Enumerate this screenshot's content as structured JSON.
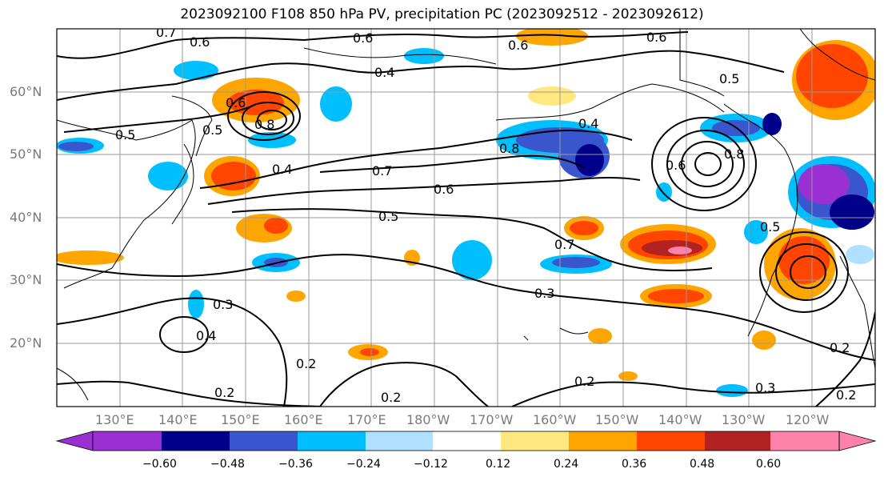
{
  "title": "2023092100 F108 850 hPa PV, precipitation PC (2023092512 - 2023092612)",
  "lat_labels": [
    "60°N",
    "50°N",
    "40°N",
    "30°N",
    "20°N"
  ],
  "lon_labels": [
    "130°E",
    "140°E",
    "150°E",
    "160°E",
    "170°E",
    "180°W",
    "170°W",
    "160°W",
    "150°W",
    "140°W",
    "130°W",
    "120°W"
  ],
  "colorbar": {
    "ticks": [
      "−0.60",
      "−0.48",
      "−0.36",
      "−0.24",
      "−0.12",
      "0.12",
      "0.24",
      "0.36",
      "0.48",
      "0.60"
    ],
    "colors": [
      "#9b30d2",
      "#00008b",
      "#3a56cf",
      "#00bfff",
      "#b0e0ff",
      "#ffffff",
      "#ffe97f",
      "#ffa500",
      "#ff4500",
      "#b22222",
      "#ff82ab"
    ]
  },
  "contour_labels": [
    "0.7",
    "0.6",
    "0.6",
    "0.6",
    "0.6",
    "0.5",
    "0.4",
    "0.6",
    "0.8",
    "0.5",
    "0.5",
    "0.4",
    "0.7",
    "0.8",
    "0.6",
    "0.5",
    "0.7",
    "0.4",
    "0.6",
    "0.8",
    "0.5",
    "0.3",
    "0.3",
    "0.4",
    "0.2",
    "0.2",
    "0.2",
    "0.2",
    "0.3",
    "0.2",
    "0.2"
  ]
}
